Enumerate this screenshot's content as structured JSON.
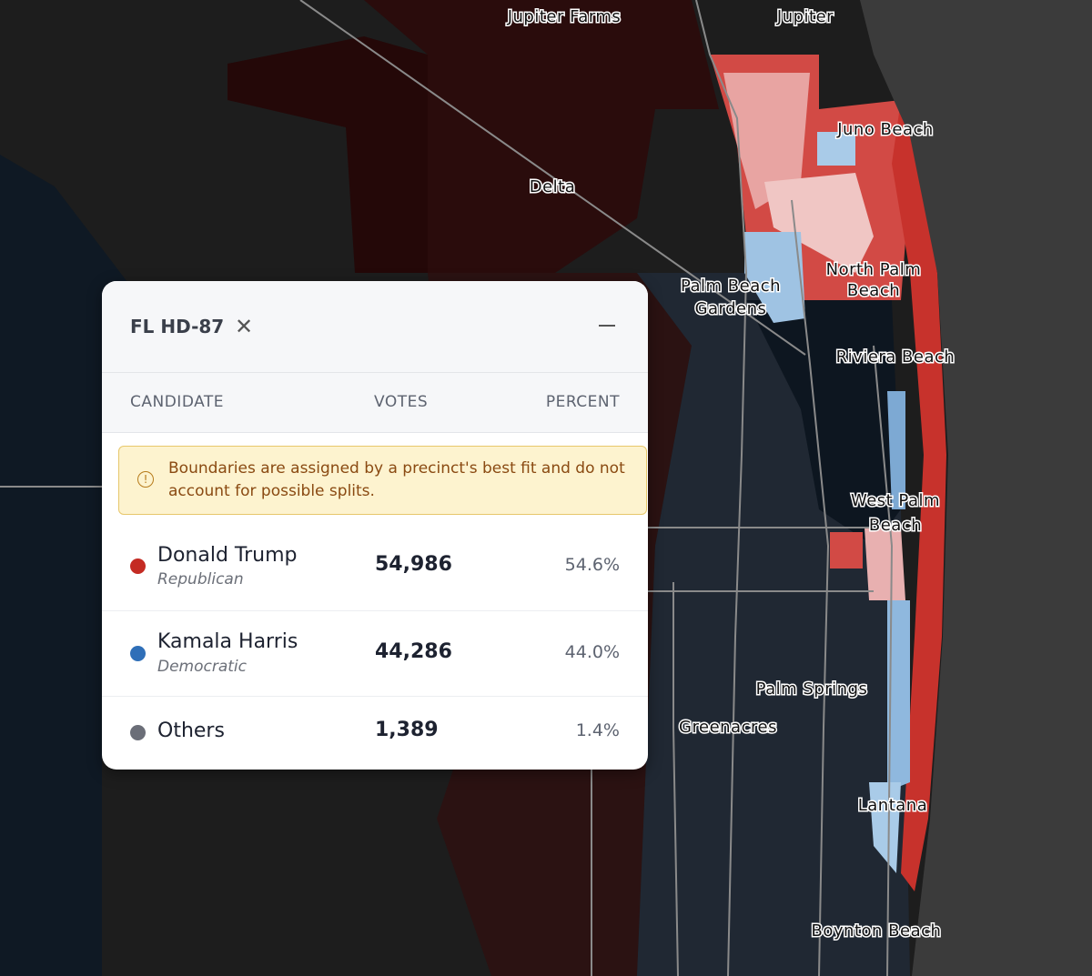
{
  "map": {
    "places": [
      {
        "lines": [
          "Jupiter Farms"
        ]
      },
      {
        "lines": [
          "Jupiter"
        ]
      },
      {
        "lines": [
          "Juno Beach"
        ]
      },
      {
        "lines": [
          "Delta"
        ]
      },
      {
        "lines": [
          "Palm Beach",
          "Gardens"
        ]
      },
      {
        "lines": [
          "North Palm",
          "Beach"
        ]
      },
      {
        "lines": [
          "Riviera Beach"
        ]
      },
      {
        "lines": [
          "West Palm",
          "Beach"
        ]
      },
      {
        "lines": [
          "Palm Springs"
        ]
      },
      {
        "lines": [
          "Greenacres"
        ]
      },
      {
        "lines": [
          "Lantana"
        ]
      },
      {
        "lines": [
          "Boynton Beach"
        ]
      }
    ]
  },
  "popup": {
    "title": "FL HD-87",
    "columns": [
      "CANDIDATE",
      "VOTES",
      "PERCENT"
    ],
    "notice": "Boundaries are assigned by a precinct's best fit and do not account for possible splits.",
    "rows": [
      {
        "name": "Donald Trump",
        "party": "Republican",
        "votes": "54,986",
        "percent": "54.6%",
        "color": "#c42b23"
      },
      {
        "name": "Kamala Harris",
        "party": "Democratic",
        "votes": "44,286",
        "percent": "44.0%",
        "color": "#2f6fb8"
      },
      {
        "name": "Others",
        "votes": "1,389",
        "percent": "1.4%",
        "color": "#6b6e78"
      }
    ]
  }
}
